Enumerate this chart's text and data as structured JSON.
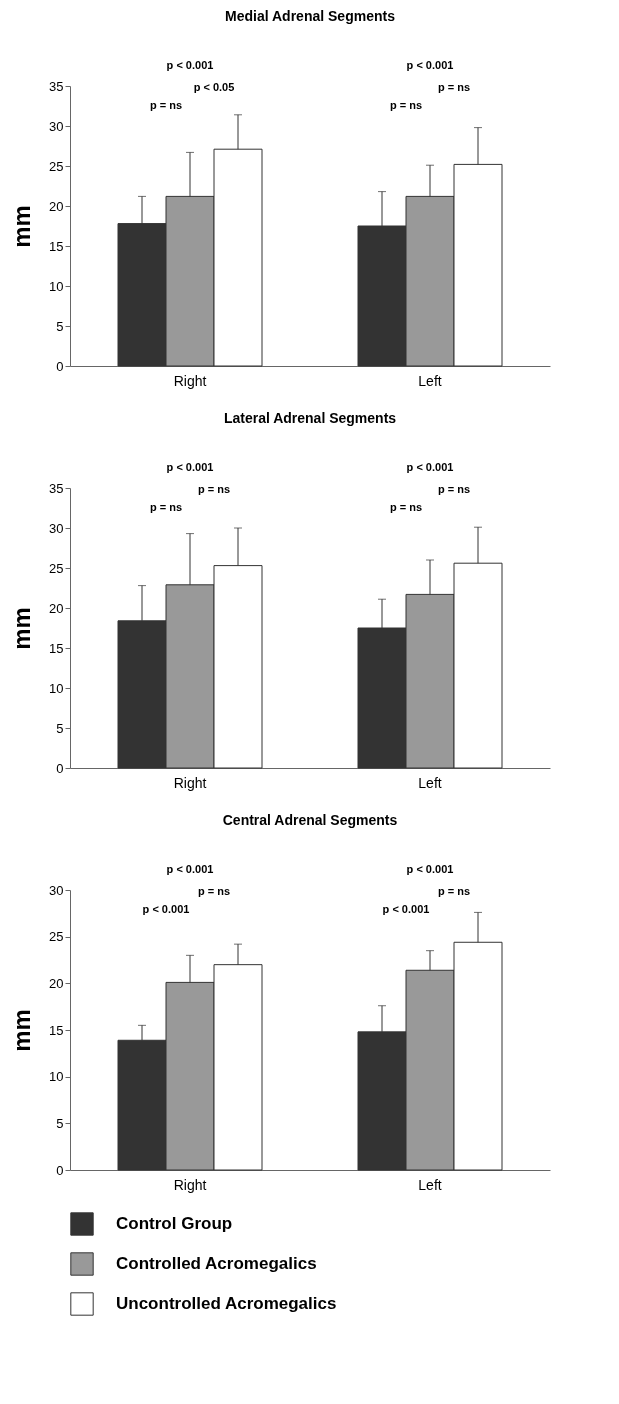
{
  "chart_data": [
    {
      "type": "bar",
      "title": "Medial Adrenal Segments",
      "ylabel": "mm",
      "categories": [
        "Right",
        "Left"
      ],
      "ylim": [
        0,
        35
      ],
      "yticks": [
        0,
        5,
        10,
        15,
        20,
        25,
        30,
        35
      ],
      "annotations": [
        "p < 0.001",
        "p = ns",
        "p < 0.05",
        "p < 0.001",
        "p = ns",
        "p = ns"
      ],
      "series": [
        {
          "color": "#333333",
          "values": [
            17.8,
            17.5
          ],
          "errors": [
            [
              17.8,
              21.2
            ],
            [
              17.5,
              21.8
            ]
          ]
        },
        {
          "color": "#999999",
          "values": [
            21.2,
            21.2
          ],
          "errors": [
            [
              21.2,
              26.7
            ],
            [
              21.2,
              25.1
            ]
          ]
        },
        {
          "color": "#ffffff",
          "values": [
            27.1,
            25.2
          ],
          "errors": [
            [
              27.1,
              31.4
            ],
            [
              25.2,
              29.8
            ]
          ]
        }
      ]
    },
    {
      "type": "bar",
      "title": "Lateral Adrenal Segments",
      "ylabel": "mm",
      "categories": [
        "Right",
        "Left"
      ],
      "ylim": [
        0,
        35
      ],
      "yticks": [
        0,
        5,
        10,
        15,
        20,
        25,
        30,
        35
      ],
      "annotations": [
        "p < 0.001",
        "p = ns",
        "p = ns",
        "p < 0.001",
        "p = ns",
        "p = ns"
      ],
      "series": [
        {
          "color": "#333333",
          "values": [
            18.4,
            17.5
          ],
          "errors": [
            [
              18.4,
              22.8
            ],
            [
              17.5,
              21.1
            ]
          ]
        },
        {
          "color": "#999999",
          "values": [
            22.9,
            21.7
          ],
          "errors": [
            [
              22.9,
              29.3
            ],
            [
              21.7,
              26.0
            ]
          ]
        },
        {
          "color": "#ffffff",
          "values": [
            25.3,
            25.6
          ],
          "errors": [
            [
              25.3,
              30.0
            ],
            [
              25.6,
              30.1
            ]
          ]
        }
      ]
    },
    {
      "type": "bar",
      "title": "Central Adrenal Segments",
      "ylabel": "mm",
      "categories": [
        "Right",
        "Left"
      ],
      "ylim": [
        0,
        30
      ],
      "yticks": [
        0,
        5,
        10,
        15,
        20,
        25,
        30
      ],
      "legend": "bottom",
      "annotations": [
        "p < 0.001",
        "p < 0.001",
        "p = ns",
        "p < 0.001",
        "p < 0.001",
        "p = ns"
      ],
      "series": [
        {
          "name": "Control Group",
          "color": "#333333",
          "values": [
            13.9,
            14.8
          ],
          "errors": [
            [
              13.9,
              15.5
            ],
            [
              14.8,
              17.6
            ]
          ]
        },
        {
          "name": "Controlled Acromegalics",
          "color": "#999999",
          "values": [
            20.1,
            21.4
          ],
          "errors": [
            [
              20.1,
              23.0
            ],
            [
              21.4,
              23.5
            ]
          ]
        },
        {
          "name": "Uncontrolled Acromegalics",
          "color": "#ffffff",
          "values": [
            22.0,
            24.4
          ],
          "errors": [
            [
              22.0,
              24.2
            ],
            [
              24.4,
              27.6
            ]
          ]
        }
      ]
    }
  ]
}
